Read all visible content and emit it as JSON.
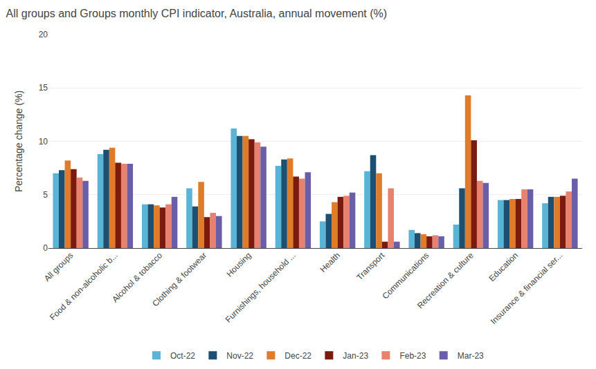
{
  "chart_data": {
    "type": "bar",
    "title": "All groups and Groups monthly CPI indicator, Australia, annual movement (%)",
    "ylabel": "Percentage change (%)",
    "categories": [
      "All groups",
      "Food & non-alcoholic b...",
      "Alcohol & tobacco",
      "Clothing & footwear",
      "Housing",
      "Furnishings, household ...",
      "Health",
      "Transport",
      "Communications",
      "Recreation & culture",
      "Education",
      "Insurance & financial ser..."
    ],
    "series": [
      {
        "name": "Oct-22",
        "color": "#5ab4d6",
        "values": [
          7.0,
          8.8,
          4.1,
          5.6,
          11.2,
          7.7,
          2.5,
          7.2,
          1.7,
          2.2,
          4.5,
          4.2
        ]
      },
      {
        "name": "Nov-22",
        "color": "#1d4f72",
        "values": [
          7.3,
          9.2,
          4.1,
          3.9,
          10.5,
          8.3,
          3.2,
          8.7,
          1.4,
          5.6,
          4.5,
          4.8
        ]
      },
      {
        "name": "Dec-22",
        "color": "#e07b2a",
        "values": [
          8.2,
          9.4,
          4.0,
          6.2,
          10.5,
          8.4,
          4.3,
          7.0,
          1.3,
          14.3,
          4.6,
          4.8
        ]
      },
      {
        "name": "Jan-23",
        "color": "#7b1a0e",
        "values": [
          7.4,
          8.0,
          3.8,
          2.9,
          10.2,
          6.7,
          4.8,
          0.6,
          1.1,
          10.1,
          4.6,
          4.9
        ]
      },
      {
        "name": "Feb-23",
        "color": "#e8816e",
        "values": [
          6.6,
          7.9,
          4.1,
          3.3,
          9.9,
          6.5,
          4.9,
          5.6,
          1.2,
          6.3,
          5.5,
          5.3
        ]
      },
      {
        "name": "Mar-23",
        "color": "#6b5ea8",
        "values": [
          6.3,
          7.9,
          4.8,
          3.0,
          9.5,
          7.1,
          5.2,
          0.6,
          1.1,
          6.1,
          5.5,
          6.5
        ]
      }
    ],
    "ylim": [
      0,
      20
    ],
    "yticks": [
      0,
      5,
      10,
      15,
      20
    ],
    "grid": true,
    "legend": "bottom"
  }
}
